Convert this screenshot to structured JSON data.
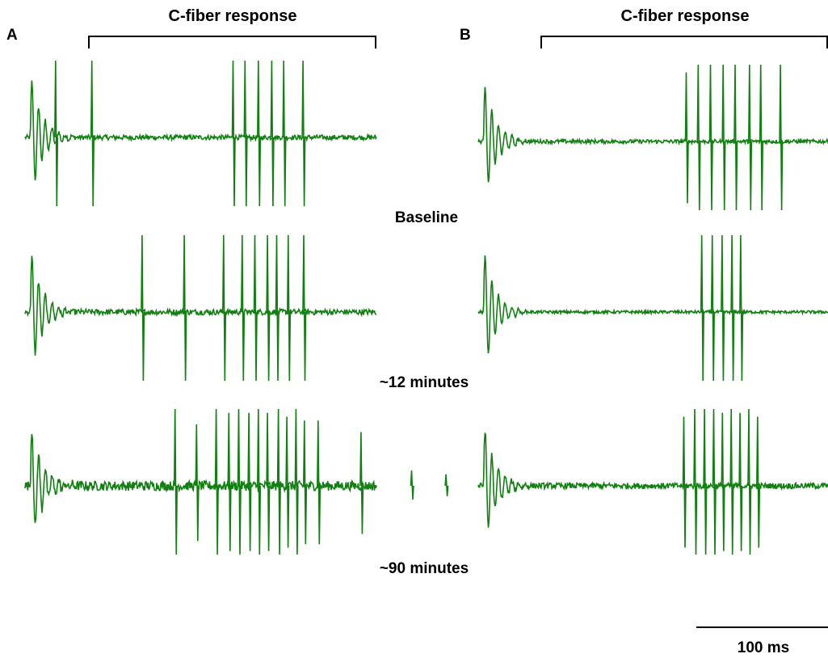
{
  "figure": {
    "trace_color": "#117f11",
    "text_color": "#000000",
    "panels": [
      {
        "letter": "A",
        "bracket_label": "C-fiber response",
        "traces": [
          {
            "spikes_ms": [
              -16.3,
              -6.0,
              34.2,
              37.6,
              41.4,
              45.2,
              48.6,
              54.1
            ],
            "spike_amps": [
              1.0,
              1.0,
              1.0,
              1.0,
              1.0,
              1.0,
              1.0,
              1.0
            ],
            "noise": 0.05
          },
          {
            "spikes_ms": [
              8.3,
              20.3,
              31.5,
              36.8,
              40.4,
              44.0,
              46.6,
              49.9,
              54.3
            ],
            "spike_amps": [
              1.0,
              1.0,
              1.0,
              1.0,
              1.0,
              1.0,
              1.0,
              1.0,
              1.0
            ],
            "noise": 0.06
          },
          {
            "spikes_ms": [
              17.7,
              23.8,
              29.4,
              33.0,
              35.8,
              38.7,
              41.4,
              44.0,
              47.1,
              49.5,
              52.1,
              54.5,
              58.4,
              70.6,
              85.0,
              94.8
            ],
            "spike_amps": [
              1.0,
              0.8,
              1.0,
              0.95,
              1.0,
              0.95,
              1.0,
              0.95,
              1.0,
              0.9,
              1.0,
              0.85,
              0.85,
              0.7,
              0.2,
              0.15
            ],
            "noise": 0.1
          }
        ]
      },
      {
        "letter": "B",
        "bracket_label": "C-fiber response",
        "traces": [
          {
            "spikes_ms": [
              34.2,
              37.6,
              41.1,
              44.7,
              48.1,
              52.2,
              55.4,
              61.0
            ],
            "spike_amps": [
              0.9,
              1.0,
              1.0,
              1.0,
              1.0,
              1.0,
              1.0,
              1.0
            ],
            "noise": 0.04
          },
          {
            "spikes_ms": [
              38.6,
              41.6,
              44.4,
              47.2,
              49.7
            ],
            "spike_amps": [
              1.0,
              1.0,
              1.0,
              1.0,
              1.0
            ],
            "noise": 0.03
          },
          {
            "spikes_ms": [
              33.5,
              36.6,
              39.4,
              42.0,
              44.5,
              47.0,
              49.5,
              52.0,
              54.5
            ],
            "spike_amps": [
              0.9,
              1.0,
              1.0,
              1.0,
              0.95,
              1.0,
              0.95,
              1.0,
              0.9
            ],
            "noise": 0.06
          }
        ]
      }
    ],
    "row_labels": [
      "Baseline",
      "~12 minutes",
      "~90 minutes"
    ],
    "scale_bar_label": "100 ms"
  },
  "chart_data": {
    "type": "line",
    "title": "",
    "xlabel": "",
    "ylabel": "",
    "description_of_series": [
      {
        "panel": "A",
        "row": "Baseline"
      },
      {
        "panel": "A",
        "row": "~12 minutes"
      },
      {
        "panel": "A",
        "row": "~90 minutes"
      },
      {
        "panel": "B",
        "row": "Baseline"
      },
      {
        "panel": "B",
        "row": "~12 minutes"
      },
      {
        "panel": "B",
        "row": "~90 minutes"
      }
    ],
    "x_unit": "ms",
    "scale_bar_ms": 100,
    "x_range_ms": [
      -25,
      75
    ],
    "bracket_range_ms": [
      0,
      75
    ],
    "grid": false,
    "legend": "none"
  }
}
